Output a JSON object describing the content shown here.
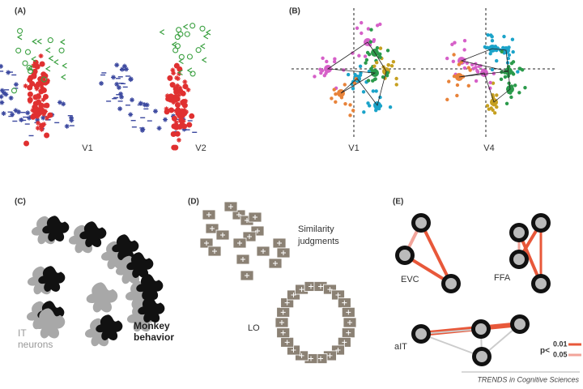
{
  "panels": [
    {
      "label": "(A)",
      "subplots": [
        "V1",
        "V2"
      ]
    },
    {
      "label": "(B)",
      "subplots": [
        "V1",
        "V4"
      ]
    },
    {
      "label": "(C)",
      "legend": [
        {
          "lines": [
            "IT",
            "neurons"
          ]
        },
        {
          "lines": [
            "Monkey",
            "behavior"
          ]
        }
      ]
    },
    {
      "label": "(D)",
      "groups": [
        {
          "lines": [
            "Similarity",
            "judgments"
          ]
        },
        {
          "lines": [
            "LO"
          ]
        }
      ]
    },
    {
      "label": "(E)",
      "regions": [
        "EVC",
        "FFA",
        "aIT"
      ],
      "legend": {
        "title": "p<",
        "levels": [
          "0.01",
          "0.05"
        ]
      }
    }
  ],
  "footer": "TRENDS in Cognitive Sciences"
}
